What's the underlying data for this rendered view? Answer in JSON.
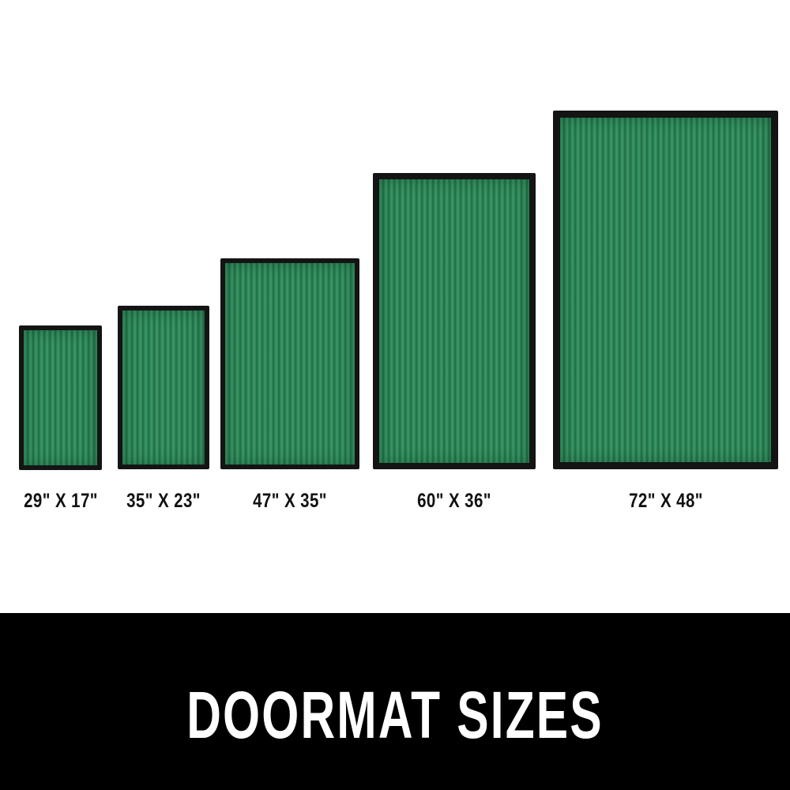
{
  "mats": [
    {
      "size_label": "29\" X 17\"",
      "color": "#2f8a5a"
    },
    {
      "size_label": "35\" X 23\"",
      "color": "#2f8a5a"
    },
    {
      "size_label": "47\" X 35\"",
      "color": "#2f8a5a"
    },
    {
      "size_label": "60\" X 36\"",
      "color": "#2f8a5a"
    },
    {
      "size_label": "72\" X 48\"",
      "color": "#2f8a5a"
    }
  ],
  "banner": {
    "title": "DOORMAT SIZES"
  }
}
